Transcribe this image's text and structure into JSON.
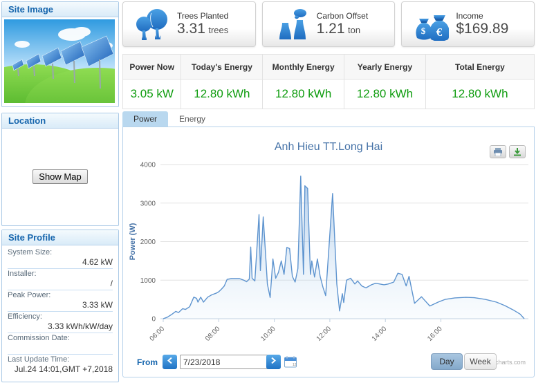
{
  "panels": {
    "site_image": {
      "title": "Site Image"
    },
    "location": {
      "title": "Location",
      "show_map_label": "Show Map"
    },
    "site_profile": {
      "title": "Site Profile",
      "fields": [
        {
          "label": "System Size:",
          "value": "4.62 kW"
        },
        {
          "label": "Installer:",
          "value": "/"
        },
        {
          "label": "Peak Power:",
          "value": "3.33 kW"
        },
        {
          "label": "Efficiency:",
          "value": "3.33 kWh/kW/day"
        },
        {
          "label": "Commission Date:",
          "value": ""
        },
        {
          "label": "Last Update Time:",
          "value": "Jul.24 14:01,GMT +7,2018"
        }
      ]
    }
  },
  "stat_cards": [
    {
      "icon": "trees-icon",
      "label": "Trees Planted",
      "value": "3.31",
      "unit": "trees"
    },
    {
      "icon": "carbon-offset-icon",
      "label": "Carbon Offset",
      "value": "1.21",
      "unit": "ton"
    },
    {
      "icon": "income-icon",
      "label": "Income",
      "value": "$169.89",
      "unit": ""
    }
  ],
  "energy_table": {
    "columns": [
      {
        "header": "Power Now",
        "value": "3.05 kW"
      },
      {
        "header": "Today's Energy",
        "value": "12.80 kWh"
      },
      {
        "header": "Monthly Energy",
        "value": "12.80 kWh"
      },
      {
        "header": "Yearly Energy",
        "value": "12.80 kWh"
      },
      {
        "header": "Total Energy",
        "value": "12.80 kWh"
      }
    ]
  },
  "tabs": [
    {
      "label": "Power",
      "active": true
    },
    {
      "label": "Energy",
      "active": false
    }
  ],
  "chart_data": {
    "type": "area",
    "title": "Anh Hieu TT.Long Hai",
    "xlabel": "",
    "ylabel": "Power (W)",
    "ylim": [
      0,
      4000
    ],
    "yticks": [
      0,
      1000,
      2000,
      3000,
      4000
    ],
    "xlim_hours": [
      5.9,
      19.15
    ],
    "xticks": [
      {
        "hour": 6,
        "label": "06:00"
      },
      {
        "hour": 8,
        "label": "08:00"
      },
      {
        "hour": 10,
        "label": "10:00"
      },
      {
        "hour": 12,
        "label": "12:00"
      },
      {
        "hour": 14,
        "label": "14:00"
      },
      {
        "hour": 16,
        "label": "16:00"
      }
    ],
    "grid": true,
    "legend": "none",
    "line_color": "#5e94cf",
    "fill_top_color": "rgba(110,160,215,0.55)",
    "fill_bottom_color": "rgba(200,225,245,0.10)",
    "points": [
      [
        6.0,
        0
      ],
      [
        6.15,
        40
      ],
      [
        6.3,
        110
      ],
      [
        6.45,
        190
      ],
      [
        6.55,
        160
      ],
      [
        6.7,
        260
      ],
      [
        6.8,
        240
      ],
      [
        6.95,
        310
      ],
      [
        7.1,
        560
      ],
      [
        7.2,
        530
      ],
      [
        7.25,
        430
      ],
      [
        7.35,
        560
      ],
      [
        7.45,
        430
      ],
      [
        7.6,
        560
      ],
      [
        7.75,
        620
      ],
      [
        7.9,
        660
      ],
      [
        8.0,
        700
      ],
      [
        8.1,
        770
      ],
      [
        8.2,
        850
      ],
      [
        8.3,
        1020
      ],
      [
        8.45,
        1040
      ],
      [
        8.6,
        1040
      ],
      [
        8.75,
        1040
      ],
      [
        8.9,
        1000
      ],
      [
        9.0,
        960
      ],
      [
        9.1,
        1030
      ],
      [
        9.15,
        1860
      ],
      [
        9.2,
        1050
      ],
      [
        9.3,
        980
      ],
      [
        9.45,
        2700
      ],
      [
        9.5,
        1250
      ],
      [
        9.6,
        2640
      ],
      [
        9.7,
        1500
      ],
      [
        9.75,
        900
      ],
      [
        9.85,
        550
      ],
      [
        9.95,
        1550
      ],
      [
        10.05,
        1050
      ],
      [
        10.15,
        1200
      ],
      [
        10.25,
        1500
      ],
      [
        10.35,
        1150
      ],
      [
        10.45,
        1850
      ],
      [
        10.55,
        1820
      ],
      [
        10.65,
        1100
      ],
      [
        10.75,
        950
      ],
      [
        10.85,
        1300
      ],
      [
        10.95,
        3700
      ],
      [
        11.05,
        1150
      ],
      [
        11.1,
        3450
      ],
      [
        11.2,
        3380
      ],
      [
        11.3,
        1150
      ],
      [
        11.35,
        1500
      ],
      [
        11.45,
        1080
      ],
      [
        11.55,
        1550
      ],
      [
        11.65,
        1100
      ],
      [
        11.75,
        820
      ],
      [
        11.85,
        600
      ],
      [
        12.1,
        3250
      ],
      [
        12.25,
        900
      ],
      [
        12.35,
        200
      ],
      [
        12.45,
        650
      ],
      [
        12.5,
        420
      ],
      [
        12.6,
        1000
      ],
      [
        12.75,
        1050
      ],
      [
        12.9,
        900
      ],
      [
        13.0,
        980
      ],
      [
        13.15,
        850
      ],
      [
        13.3,
        800
      ],
      [
        13.5,
        880
      ],
      [
        13.65,
        920
      ],
      [
        13.8,
        900
      ],
      [
        13.95,
        880
      ],
      [
        14.1,
        900
      ],
      [
        14.3,
        950
      ],
      [
        14.45,
        1180
      ],
      [
        14.6,
        1150
      ],
      [
        14.75,
        850
      ],
      [
        14.85,
        1100
      ],
      [
        15.05,
        400
      ],
      [
        15.3,
        570
      ],
      [
        15.6,
        330
      ],
      [
        15.9,
        430
      ],
      [
        16.15,
        500
      ],
      [
        16.5,
        540
      ],
      [
        16.9,
        555
      ],
      [
        17.2,
        545
      ],
      [
        17.6,
        500
      ],
      [
        18.0,
        430
      ],
      [
        18.3,
        340
      ],
      [
        18.6,
        230
      ],
      [
        18.85,
        120
      ],
      [
        19.0,
        0
      ]
    ]
  },
  "footer": {
    "from_label": "From",
    "date_value": "7/23/2018",
    "day_label": "Day",
    "week_label": "Week",
    "watermark": "charts.com"
  },
  "colors": {
    "accent_blue": "#1565ad",
    "value_green": "#0e9c0e",
    "chart_title_blue": "#4572a7",
    "icon_blue": "#2e86d4",
    "tab_active": "#b9d8ef"
  }
}
